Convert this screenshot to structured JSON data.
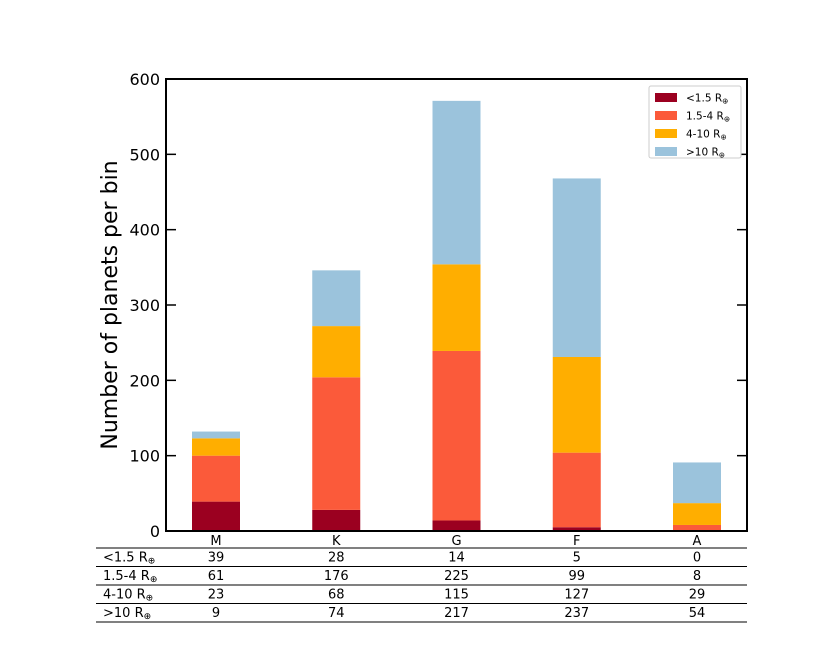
{
  "chart_data": {
    "type": "bar",
    "stacked": true,
    "categories": [
      "M",
      "K",
      "G",
      "F",
      "A"
    ],
    "series": [
      {
        "name": "<1.5 R",
        "values": [
          39,
          28,
          14,
          5,
          0
        ],
        "color": "#9b0020"
      },
      {
        "name": "1.5-4 R",
        "values": [
          61,
          176,
          225,
          99,
          8
        ],
        "color": "#fb5a3a"
      },
      {
        "name": "4-10 R",
        "values": [
          23,
          68,
          115,
          127,
          29
        ],
        "color": "#ffae00"
      },
      {
        "name": ">10 R",
        "values": [
          9,
          74,
          217,
          237,
          54
        ],
        "color": "#9bc3dc"
      }
    ],
    "legend_subscript": "⊕",
    "title": "",
    "xlabel": "",
    "ylabel": "Number of planets per bin",
    "ylim": [
      0,
      600
    ],
    "yticks": [
      0,
      100,
      200,
      300,
      400,
      500,
      600
    ],
    "grid": false,
    "legend_position": "top-right"
  }
}
